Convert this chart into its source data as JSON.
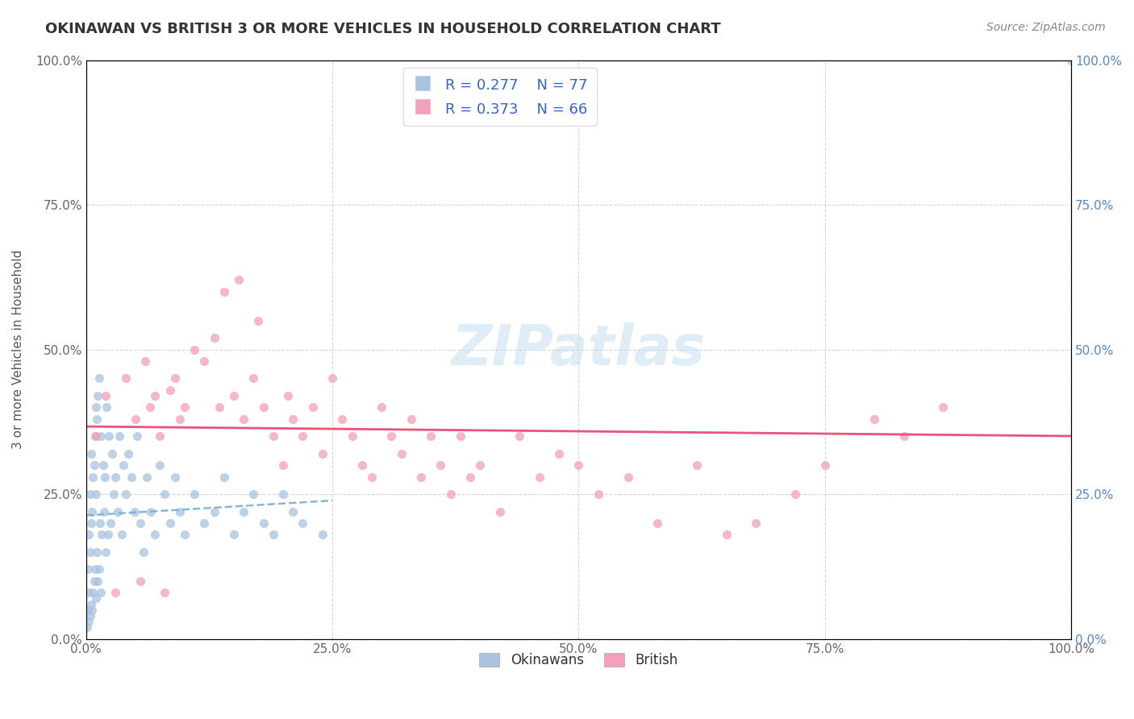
{
  "title": "OKINAWAN VS BRITISH 3 OR MORE VEHICLES IN HOUSEHOLD CORRELATION CHART",
  "source": "Source: ZipAtlas.com",
  "ylabel": "3 or more Vehicles in Household",
  "r_okinawan": 0.277,
  "n_okinawan": 77,
  "r_british": 0.373,
  "n_british": 66,
  "watermark": "ZIPatlas",
  "legend_labels": [
    "Okinawans",
    "British"
  ],
  "okinawan_color": "#a8c4e0",
  "british_color": "#f4a0b8",
  "okinawan_line_color": "#7ab0d4",
  "british_line_color": "#e8547a",
  "background_color": "#ffffff",
  "grid_color": "#cccccc",
  "xlim": [
    0,
    100
  ],
  "ylim": [
    0,
    100
  ],
  "xticks": [
    0,
    25,
    50,
    75,
    100
  ],
  "yticks": [
    0,
    25,
    50,
    75,
    100
  ],
  "xticklabels": [
    "0.0%",
    "25.0%",
    "50.0%",
    "75.0%",
    "100.0%"
  ],
  "yticklabels": [
    "0.0%",
    "25.0%",
    "50.0%",
    "75.0%",
    "100.0%"
  ],
  "right_yticklabels": [
    "0.0%",
    "25.0%",
    "50.0%",
    "75.0%",
    "100.0%"
  ],
  "okinawan_x": [
    0.1,
    0.2,
    0.2,
    0.3,
    0.3,
    0.3,
    0.4,
    0.4,
    0.4,
    0.5,
    0.5,
    0.5,
    0.6,
    0.6,
    0.7,
    0.7,
    0.8,
    0.8,
    0.9,
    0.9,
    1.0,
    1.0,
    1.0,
    1.1,
    1.1,
    1.2,
    1.2,
    1.3,
    1.3,
    1.4,
    1.5,
    1.5,
    1.6,
    1.7,
    1.8,
    1.9,
    2.0,
    2.1,
    2.2,
    2.3,
    2.5,
    2.6,
    2.8,
    3.0,
    3.2,
    3.4,
    3.6,
    3.8,
    4.0,
    4.3,
    4.6,
    4.9,
    5.2,
    5.5,
    5.8,
    6.2,
    6.6,
    7.0,
    7.5,
    8.0,
    8.5,
    9.0,
    9.5,
    10.0,
    11.0,
    12.0,
    13.0,
    14.0,
    15.0,
    16.0,
    17.0,
    18.0,
    19.0,
    20.0,
    21.0,
    22.0,
    24.0
  ],
  "okinawan_y": [
    2,
    5,
    12,
    3,
    8,
    18,
    4,
    15,
    25,
    6,
    20,
    32,
    5,
    22,
    8,
    28,
    10,
    30,
    12,
    35,
    7,
    25,
    40,
    15,
    38,
    10,
    42,
    12,
    45,
    20,
    8,
    35,
    18,
    30,
    22,
    28,
    15,
    40,
    18,
    35,
    20,
    32,
    25,
    28,
    22,
    35,
    18,
    30,
    25,
    32,
    28,
    22,
    35,
    20,
    15,
    28,
    22,
    18,
    30,
    25,
    20,
    28,
    22,
    18,
    25,
    20,
    22,
    28,
    18,
    22,
    25,
    20,
    18,
    25,
    22,
    20,
    18
  ],
  "british_x": [
    1.0,
    2.0,
    3.0,
    4.0,
    5.0,
    5.5,
    6.0,
    6.5,
    7.0,
    7.5,
    8.0,
    8.5,
    9.0,
    9.5,
    10.0,
    11.0,
    12.0,
    13.0,
    13.5,
    14.0,
    15.0,
    15.5,
    16.0,
    17.0,
    17.5,
    18.0,
    19.0,
    20.0,
    20.5,
    21.0,
    22.0,
    23.0,
    24.0,
    25.0,
    26.0,
    27.0,
    28.0,
    29.0,
    30.0,
    31.0,
    32.0,
    33.0,
    34.0,
    35.0,
    36.0,
    37.0,
    38.0,
    39.0,
    40.0,
    42.0,
    44.0,
    46.0,
    48.0,
    50.0,
    52.0,
    55.0,
    58.0,
    62.0,
    65.0,
    68.0,
    72.0,
    75.0,
    80.0,
    83.0,
    87.0,
    100.0
  ],
  "british_y": [
    35,
    42,
    8,
    45,
    38,
    10,
    48,
    40,
    42,
    35,
    8,
    43,
    45,
    38,
    40,
    50,
    48,
    52,
    40,
    60,
    42,
    62,
    38,
    45,
    55,
    40,
    35,
    30,
    42,
    38,
    35,
    40,
    32,
    45,
    38,
    35,
    30,
    28,
    40,
    35,
    32,
    38,
    28,
    35,
    30,
    25,
    35,
    28,
    30,
    22,
    35,
    28,
    32,
    30,
    25,
    28,
    20,
    30,
    18,
    20,
    25,
    30,
    38,
    35,
    40,
    100
  ]
}
